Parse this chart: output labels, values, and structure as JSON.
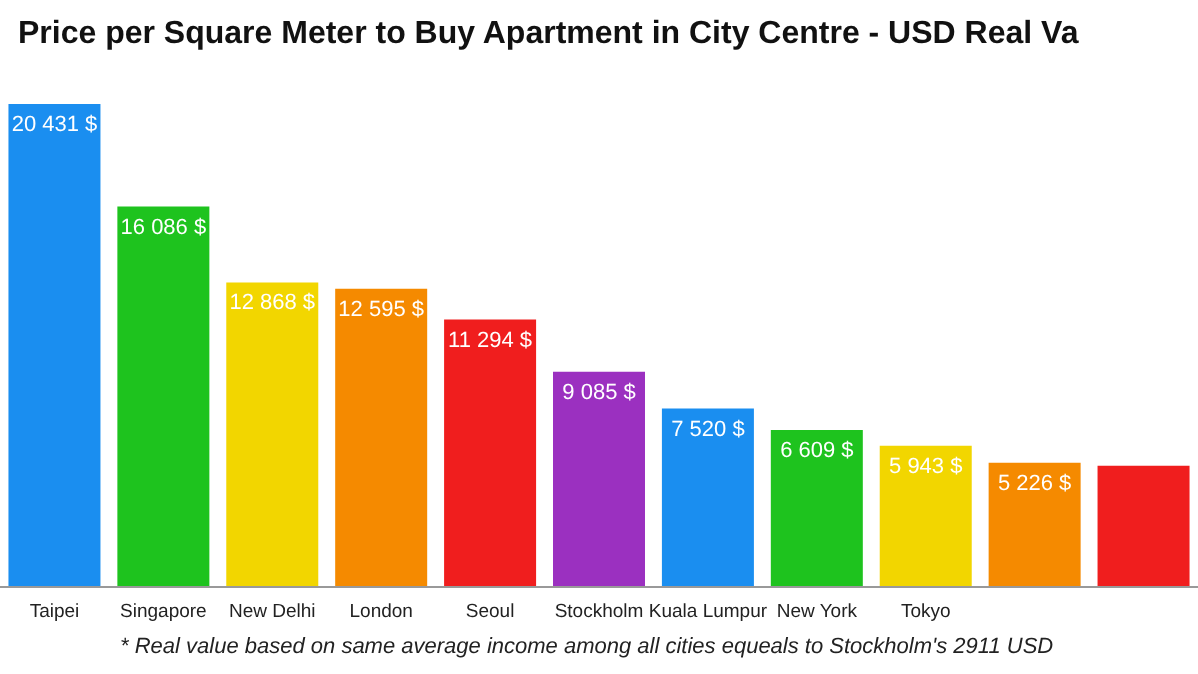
{
  "chart_data": {
    "type": "bar",
    "title": "Price per Square Meter to Buy Apartment in City Centre - USD Real Va",
    "categories": [
      "Taipei",
      "Singapore",
      "New Delhi",
      "London",
      "Seoul",
      "Stockholm",
      "Kuala Lumpur",
      "New York",
      "Tokyo",
      null,
      null
    ],
    "values": [
      20431,
      16086,
      12868,
      12595,
      11294,
      9085,
      7520,
      6609,
      5943,
      5226,
      5100
    ],
    "value_labels": [
      "20 431 $",
      "16 086 $",
      "12 868 $",
      "12 595 $",
      "11 294 $",
      "9 085 $",
      "7 520 $",
      "6 609 $",
      "5 943 $",
      "5 226 $",
      null
    ],
    "colors": [
      "#1a8ef0",
      "#1ec31e",
      "#f2d600",
      "#f58a00",
      "#f01e1e",
      "#9b30c0",
      "#1a8ef0",
      "#1ec31e",
      "#f2d600",
      "#f58a00",
      "#f01e1e"
    ],
    "annotations": [
      "* Real value based on same average income among all cities equeals to Stockholm's 2911 USD"
    ]
  }
}
